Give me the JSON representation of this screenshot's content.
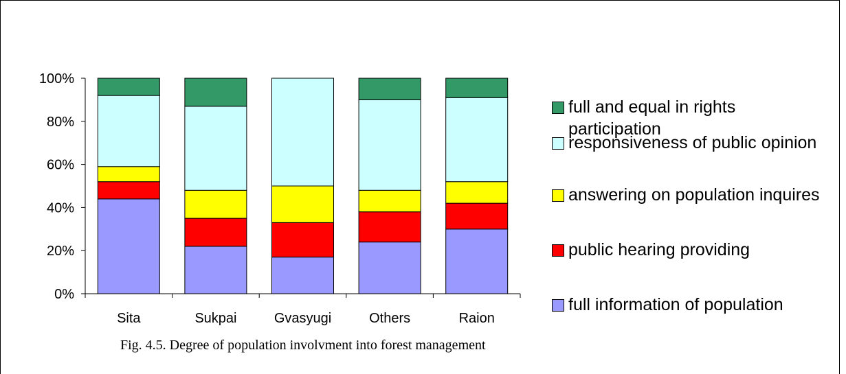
{
  "chart_data": {
    "type": "stacked_bar",
    "caption": "Fig. 4.5. Degree of population involvment into forest management",
    "categories": [
      "Sita",
      "Sukpai",
      "Gvasyugi",
      "Others",
      "Raion"
    ],
    "series": [
      {
        "name": "full information of population",
        "color": "#9999ff",
        "values": [
          44,
          22,
          17,
          24,
          30
        ]
      },
      {
        "name": "public hearing providing",
        "color": "#ff0000",
        "values": [
          8,
          13,
          16,
          14,
          12
        ]
      },
      {
        "name": "answering on population inquires",
        "color": "#ffff00",
        "values": [
          7,
          13,
          17,
          10,
          10
        ]
      },
      {
        "name": "responsiveness of public opinion",
        "color": "#ccffff",
        "values": [
          33,
          39,
          50,
          42,
          39
        ]
      },
      {
        "name": "full and equal in rights participation",
        "color": "#339966",
        "values": [
          8,
          13,
          0,
          10,
          9
        ]
      }
    ],
    "ylim": [
      0,
      100
    ],
    "yticks": [
      {
        "value": 0,
        "label": "0%"
      },
      {
        "value": 20,
        "label": "20%"
      },
      {
        "value": 40,
        "label": "40%"
      },
      {
        "value": 60,
        "label": "60%"
      },
      {
        "value": 80,
        "label": "80%"
      },
      {
        "value": 100,
        "label": "100%"
      }
    ]
  }
}
